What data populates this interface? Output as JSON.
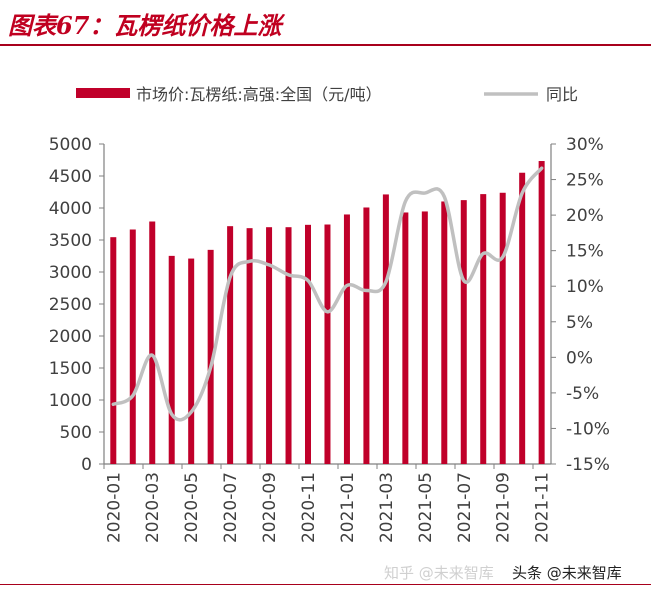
{
  "title": "图表67：瓦楞纸价格上涨",
  "watermark": {
    "text1": "知乎 @未来智库",
    "text2": "头条 @未来智库"
  },
  "chart_data": {
    "type": "bar+line",
    "title": "",
    "categories": [
      "2020-01",
      "2020-02",
      "2020-03",
      "2020-04",
      "2020-05",
      "2020-06",
      "2020-07",
      "2020-08",
      "2020-09",
      "2020-10",
      "2020-11",
      "2020-12",
      "2021-01",
      "2021-02",
      "2021-03",
      "2021-04",
      "2021-05",
      "2021-06",
      "2021-07",
      "2021-08",
      "2021-09",
      "2021-10",
      "2021-11"
    ],
    "tick_labels": [
      "2020-01",
      "2020-03",
      "2020-05",
      "2020-07",
      "2020-09",
      "2020-11",
      "2021-01",
      "2021-03",
      "2021-05",
      "2021-07",
      "2021-09",
      "2021-11"
    ],
    "series": [
      {
        "name": "市场价:瓦楞纸:高强:全国（元/吨）",
        "type": "bar",
        "axis": "left",
        "color": "#c0002a",
        "values": [
          3544,
          3664,
          3789,
          3252,
          3210,
          3346,
          3716,
          3685,
          3700,
          3700,
          3737,
          3742,
          3899,
          4008,
          4212,
          3930,
          3946,
          4102,
          4123,
          4217,
          4238,
          4551,
          4734
        ]
      },
      {
        "name": "同比",
        "type": "line",
        "axis": "right",
        "color": "#c0c0c0",
        "values": [
          -6.6,
          -5.4,
          0.3,
          -8.0,
          -7.7,
          -1.4,
          11.3,
          13.5,
          13.0,
          11.6,
          10.8,
          6.4,
          10.1,
          9.4,
          10.6,
          21.9,
          23.1,
          22.6,
          10.8,
          14.6,
          14.1,
          23.1,
          26.6
        ]
      }
    ],
    "left_axis": {
      "ylim": [
        0,
        5000
      ],
      "ticks": [
        "0",
        "500",
        "1000",
        "1500",
        "2000",
        "2500",
        "3000",
        "3500",
        "4000",
        "4500",
        "5000"
      ]
    },
    "right_axis": {
      "ylim": [
        -15,
        30
      ],
      "unit": "%",
      "ticks": [
        "-15%",
        "-10%",
        "-5%",
        "0%",
        "5%",
        "10%",
        "15%",
        "20%",
        "25%",
        "30%"
      ]
    },
    "legend": "top",
    "grid": false
  }
}
